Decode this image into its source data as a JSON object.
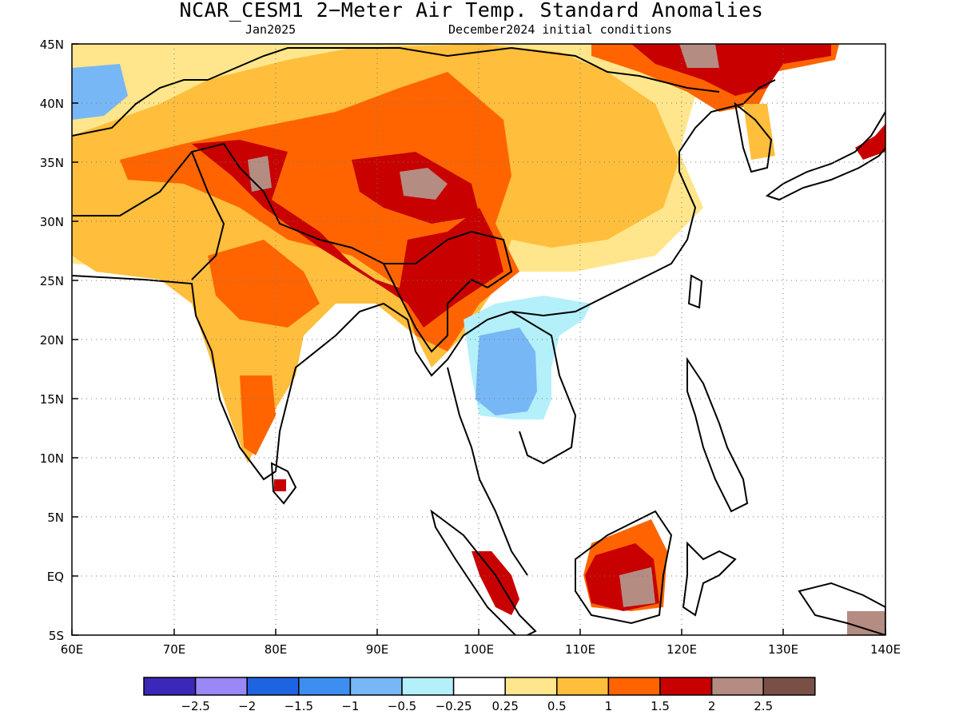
{
  "title": "NCAR_CESM1 2−Meter Air Temp. Standard Anomalies",
  "subtitle_left": "Jan2025",
  "subtitle_right": "December2024 initial conditions",
  "lat_labels": [
    "45N",
    "40N",
    "35N",
    "30N",
    "25N",
    "20N",
    "15N",
    "10N",
    "5N",
    "EQ",
    "5S"
  ],
  "lon_labels": [
    "60E",
    "70E",
    "80E",
    "90E",
    "100E",
    "110E",
    "120E",
    "130E",
    "140E"
  ],
  "colorbar": {
    "colors": [
      "#3b28b8",
      "#9b87f5",
      "#1e64e0",
      "#3c8ff0",
      "#78b7f5",
      "#b4f0fa",
      "#ffffff",
      "#ffe68c",
      "#ffbe3c",
      "#ff6400",
      "#c80000",
      "#b48c82",
      "#7a5046"
    ],
    "labels": [
      "−2.5",
      "−2",
      "−1.5",
      "−1",
      "−0.5",
      "−0.25",
      "0.25",
      "0.5",
      "1",
      "1.5",
      "2",
      "2.5"
    ]
  },
  "map_data": {
    "region": {
      "lon_range": [
        60,
        140
      ],
      "lat_range": [
        -5,
        45
      ]
    },
    "field": "2-meter air temperature standard anomaly",
    "notable_regions": [
      {
        "area": "Tibetan Plateau / Himalaya",
        "anomaly": "1.5 to >2"
      },
      {
        "area": "Myanmar / Yunnan",
        "anomaly": "1.5 to 2"
      },
      {
        "area": "Central India",
        "anomaly": "0.5 to 1.5"
      },
      {
        "area": "Thailand / Laos",
        "anomaly": "-0.25 to -1"
      },
      {
        "area": "Borneo",
        "anomaly": "1.5 to >2"
      },
      {
        "area": "Northeast China / Korea border",
        "anomaly": "1.5 to >2"
      }
    ]
  }
}
